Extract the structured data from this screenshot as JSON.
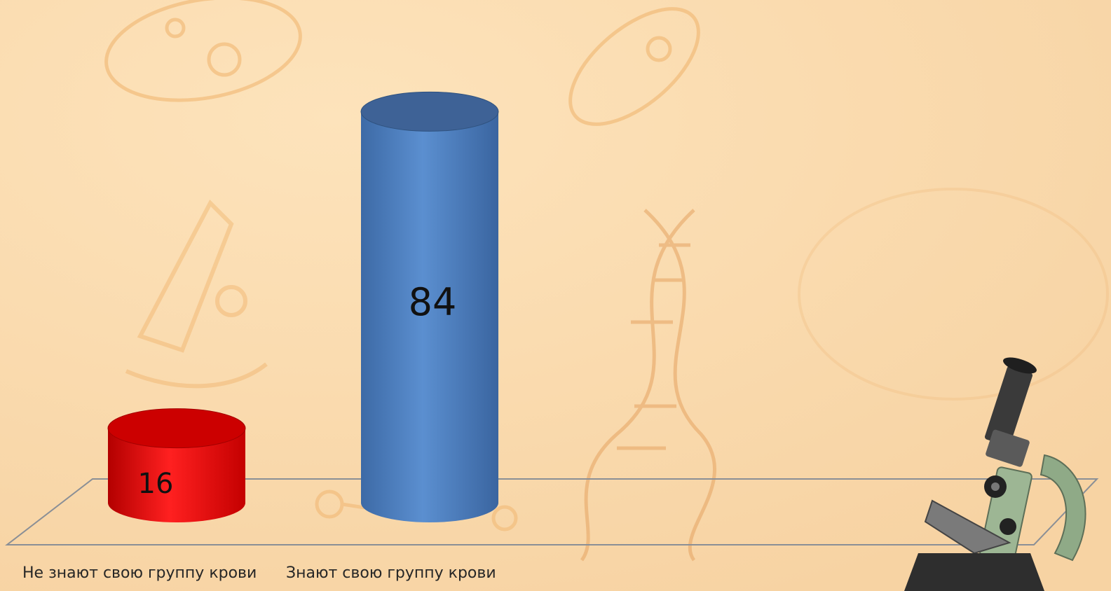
{
  "chart_data": {
    "type": "bar",
    "categories": [
      "Не знают свою группу крови",
      "Знают свою группу крови"
    ],
    "values": [
      16,
      84
    ],
    "data_labels": [
      "16",
      "84"
    ],
    "colors": [
      "#ff0000",
      "#4f81bd"
    ],
    "ylim": [
      0,
      100
    ],
    "title": "",
    "xlabel": "",
    "ylabel": "",
    "grid": false,
    "legend": "none",
    "style": "3d-cylinder"
  },
  "background": {
    "color": "#fbdcaf",
    "decor_icons": [
      "bacteria-icon",
      "dna-icon",
      "microscope-icon",
      "molecule-icon"
    ]
  }
}
